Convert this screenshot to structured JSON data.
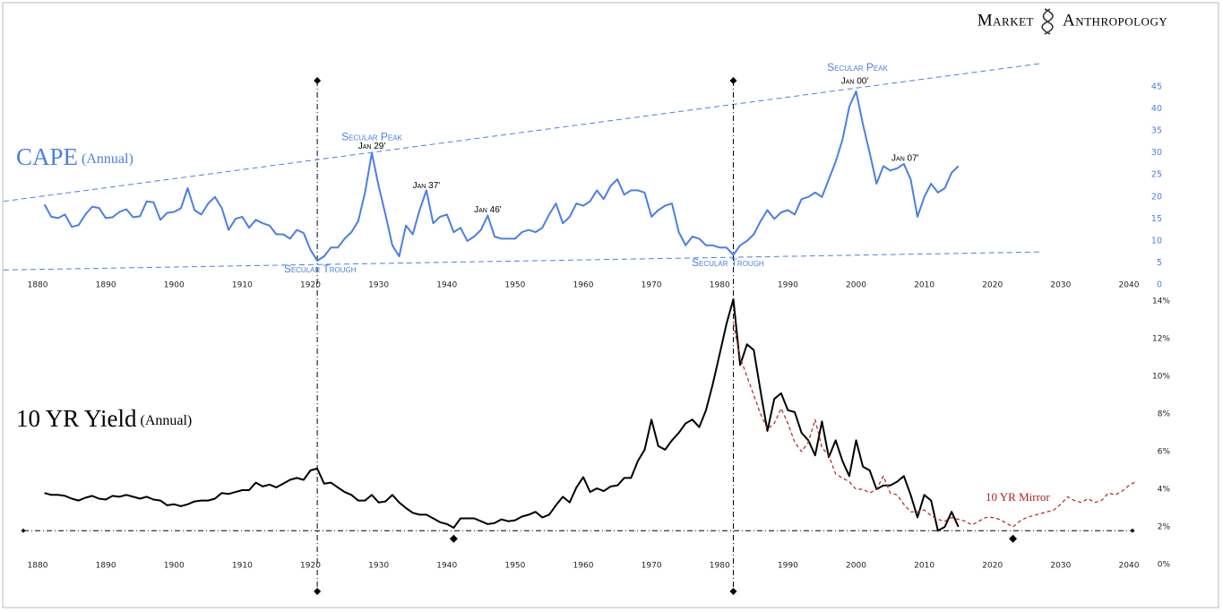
{
  "brand": {
    "words": [
      "Market",
      "Anthropology"
    ]
  },
  "chart_data": [
    {
      "type": "line",
      "title": "CAPE",
      "subtitle": "(Annual)",
      "series": [
        {
          "color": "#4a7fe6",
          "x": [
            1881,
            1882,
            1883,
            1884,
            1885,
            1886,
            1887,
            1888,
            1889,
            1890,
            1891,
            1892,
            1893,
            1894,
            1895,
            1896,
            1897,
            1898,
            1899,
            1900,
            1901,
            1902,
            1903,
            1904,
            1905,
            1906,
            1907,
            1908,
            1909,
            1910,
            1911,
            1912,
            1913,
            1914,
            1915,
            1916,
            1917,
            1918,
            1919,
            1920,
            1921,
            1922,
            1923,
            1924,
            1925,
            1926,
            1927,
            1928,
            1929,
            1930,
            1931,
            1932,
            1933,
            1934,
            1935,
            1936,
            1937,
            1938,
            1939,
            1940,
            1941,
            1942,
            1943,
            1944,
            1945,
            1946,
            1947,
            1948,
            1949,
            1950,
            1951,
            1952,
            1953,
            1954,
            1955,
            1956,
            1957,
            1958,
            1959,
            1960,
            1961,
            1962,
            1963,
            1964,
            1965,
            1966,
            1967,
            1968,
            1969,
            1970,
            1971,
            1972,
            1973,
            1974,
            1975,
            1976,
            1977,
            1978,
            1979,
            1980,
            1981,
            1982,
            1983,
            1984,
            1985,
            1986,
            1987,
            1988,
            1989,
            1990,
            1991,
            1992,
            1993,
            1994,
            1995,
            1996,
            1997,
            1998,
            1999,
            2000,
            2001,
            2002,
            2003,
            2004,
            2005,
            2006,
            2007,
            2008,
            2009,
            2010,
            2011,
            2012,
            2013,
            2014,
            2015
          ],
          "values": [
            18.3,
            15.5,
            15.2,
            16,
            13.2,
            13.6,
            16,
            17.8,
            17.5,
            15.2,
            15.4,
            16.6,
            17.2,
            15.4,
            15.6,
            19,
            18.8,
            14.8,
            16.4,
            16.6,
            17.4,
            22,
            17,
            16,
            18.5,
            20,
            17.5,
            12.5,
            15,
            15.5,
            13,
            14.8,
            14,
            13.5,
            11.5,
            11.5,
            10.5,
            12.5,
            11.8,
            8,
            5.5,
            6.5,
            8.5,
            8.5,
            10.5,
            12,
            14.5,
            21,
            30,
            22.5,
            16,
            9,
            6.5,
            13.5,
            11.5,
            17,
            21.5,
            14,
            15.5,
            16,
            12,
            13,
            10,
            11,
            12.5,
            15.8,
            11,
            10.5,
            10.5,
            10.5,
            12,
            12.5,
            12,
            13,
            16,
            18.5,
            14,
            15.5,
            18.5,
            18,
            19,
            21.5,
            19.5,
            22.5,
            24,
            20.5,
            21.5,
            21.5,
            21,
            15.5,
            17,
            18,
            18.5,
            12,
            9,
            11,
            10.5,
            9,
            9,
            8.5,
            8.5,
            6.8,
            9,
            10,
            11.5,
            14.5,
            17,
            15,
            16.5,
            17,
            16,
            19.5,
            20,
            21,
            20,
            24,
            28,
            33,
            40.5,
            44,
            36.5,
            30,
            23,
            27,
            26,
            26.5,
            27.5,
            24,
            15.5,
            20,
            23,
            21,
            22,
            25.5,
            27
          ]
        }
      ],
      "xlim": [
        1880,
        2040
      ],
      "xticks": [
        1880,
        1890,
        1900,
        1910,
        1920,
        1930,
        1940,
        1950,
        1960,
        1970,
        1980,
        1990,
        2000,
        2010,
        2020,
        2030,
        2040
      ],
      "ylim": [
        0,
        45
      ],
      "yticks": [
        0,
        5,
        10,
        15,
        20,
        25,
        30,
        35,
        40,
        45
      ],
      "trendlines": [
        {
          "x": [
            1875,
            2027
          ],
          "values": [
            19,
            50.3
          ]
        },
        {
          "x": [
            1875,
            2027
          ],
          "values": [
            3.4,
            7.5
          ]
        }
      ],
      "vlines": [
        1921,
        1982
      ],
      "annotations": [
        {
          "text": "Secular Peak",
          "x": 1929,
          "y": 33.5
        },
        {
          "text": "Jan 29'",
          "x": 1929,
          "y": 31.5
        },
        {
          "text": "Jan 37'",
          "x": 1937,
          "y": 22.5
        },
        {
          "text": "Jan 46'",
          "x": 1946,
          "y": 17
        },
        {
          "text": "Secular Trough",
          "x": 1921.4,
          "y": 3.5
        },
        {
          "text": "Secular Trough",
          "x": 1981.2,
          "y": 4.9
        },
        {
          "text": "Secular Peak",
          "x": 2000.2,
          "y": 49.3
        },
        {
          "text": "Jan 00'",
          "x": 1999.8,
          "y": 46.2
        },
        {
          "text": "Jan 07'",
          "x": 2007.2,
          "y": 28.7
        }
      ]
    },
    {
      "type": "line",
      "title": "10 YR Yield",
      "subtitle": "(Annual)",
      "series": [
        {
          "color": "#000000",
          "dash": false,
          "x": [
            1881,
            1882,
            1883,
            1884,
            1885,
            1886,
            1887,
            1888,
            1889,
            1890,
            1891,
            1892,
            1893,
            1894,
            1895,
            1896,
            1897,
            1898,
            1899,
            1900,
            1901,
            1902,
            1903,
            1904,
            1905,
            1906,
            1907,
            1908,
            1909,
            1910,
            1911,
            1912,
            1913,
            1914,
            1915,
            1916,
            1917,
            1918,
            1919,
            1920,
            1921,
            1922,
            1923,
            1924,
            1925,
            1926,
            1927,
            1928,
            1929,
            1930,
            1931,
            1932,
            1933,
            1934,
            1935,
            1936,
            1937,
            1938,
            1939,
            1940,
            1941,
            1942,
            1943,
            1944,
            1945,
            1946,
            1947,
            1948,
            1949,
            1950,
            1951,
            1952,
            1953,
            1954,
            1955,
            1956,
            1957,
            1958,
            1959,
            1960,
            1961,
            1962,
            1963,
            1964,
            1965,
            1966,
            1967,
            1968,
            1969,
            1970,
            1971,
            1972,
            1973,
            1974,
            1975,
            1976,
            1977,
            1978,
            1979,
            1980,
            1981,
            1982,
            1983,
            1984,
            1985,
            1986,
            1987,
            1988,
            1989,
            1990,
            1991,
            1992,
            1993,
            1994,
            1995,
            1996,
            1997,
            1998,
            1999,
            2000,
            2001,
            2002,
            2003,
            2004,
            2005,
            2006,
            2007,
            2008,
            2009,
            2010,
            2011,
            2012,
            2013,
            2014,
            2015
          ],
          "values": [
            3.8,
            3.7,
            3.7,
            3.65,
            3.5,
            3.4,
            3.55,
            3.65,
            3.5,
            3.45,
            3.65,
            3.6,
            3.7,
            3.6,
            3.5,
            3.6,
            3.45,
            3.4,
            3.15,
            3.2,
            3.1,
            3.2,
            3.35,
            3.4,
            3.4,
            3.5,
            3.8,
            3.75,
            3.85,
            3.95,
            3.95,
            4.35,
            4.15,
            4.25,
            4.1,
            4.3,
            4.5,
            4.6,
            4.5,
            5,
            5.1,
            4.3,
            4.35,
            4.1,
            3.85,
            3.7,
            3.4,
            3.4,
            3.7,
            3.3,
            3.35,
            3.7,
            3.3,
            3,
            2.75,
            2.65,
            2.65,
            2.45,
            2.25,
            2.15,
            1.95,
            2.45,
            2.45,
            2.45,
            2.3,
            2.15,
            2.2,
            2.4,
            2.3,
            2.35,
            2.55,
            2.65,
            2.8,
            2.5,
            2.65,
            3.15,
            3.6,
            3.3,
            4.1,
            4.65,
            3.85,
            4.05,
            3.9,
            4.15,
            4.2,
            4.6,
            4.6,
            5.5,
            6.1,
            7.7,
            6.3,
            6.1,
            6.6,
            7,
            7.5,
            7.7,
            7.3,
            8.2,
            9.6,
            11.2,
            12.8,
            14.1,
            10.6,
            11.7,
            11.4,
            9.2,
            7.1,
            8.8,
            9.1,
            8.2,
            8.1,
            7,
            6.6,
            5.8,
            7.6,
            5.7,
            6.6,
            5.5,
            4.7,
            6.6,
            5.2,
            5,
            4,
            4.2,
            4.2,
            4.4,
            4.7,
            3.7,
            2.5,
            3.7,
            3.4,
            1.8,
            2,
            2.8,
            2
          ]
        },
        {
          "name": "10 YR Mirror",
          "color": "#b22222",
          "dash": true,
          "x": [
            1982,
            1983,
            1984,
            1985,
            1986,
            1987,
            1988,
            1989,
            1990,
            1991,
            1992,
            1993,
            1994,
            1995,
            1996,
            1997,
            1998,
            1999,
            2000,
            2001,
            2002,
            2003,
            2004,
            2005,
            2006,
            2007,
            2008,
            2009,
            2010,
            2011,
            2012,
            2013,
            2014,
            2015,
            2016,
            2017,
            2018,
            2019,
            2020,
            2021,
            2022,
            2023,
            2024,
            2025,
            2026,
            2027,
            2028,
            2029,
            2030,
            2031,
            2032,
            2033,
            2034,
            2035,
            2036,
            2037,
            2038,
            2039,
            2040,
            2041
          ],
          "values": [
            12.8,
            11,
            10,
            9,
            8,
            7.2,
            7.5,
            8.3,
            7.5,
            6.5,
            6,
            6.5,
            7.7,
            6.2,
            5.8,
            4.8,
            4.6,
            4.4,
            4,
            4,
            3.8,
            4,
            4.7,
            3.8,
            3.7,
            3.2,
            2.8,
            2.8,
            2.9,
            2.6,
            2.4,
            2.3,
            2.5,
            2.4,
            2.3,
            2.1,
            2.3,
            2.5,
            2.5,
            2.4,
            2.2,
            2,
            2.3,
            2.5,
            2.6,
            2.7,
            2.8,
            2.9,
            3.2,
            3.6,
            3.4,
            3.3,
            3.5,
            3.3,
            3.4,
            3.8,
            3.7,
            3.9,
            4.2,
            4.4
          ]
        }
      ],
      "xlim": [
        1880,
        2040
      ],
      "xticks": [
        1880,
        1890,
        1900,
        1910,
        1920,
        1930,
        1940,
        1950,
        1960,
        1970,
        1980,
        1990,
        2000,
        2010,
        2020,
        2030,
        2040
      ],
      "ylim": [
        0,
        14
      ],
      "yticks": [
        {
          "value": 0,
          "label": "0%"
        },
        {
          "value": 2,
          "label": "2%"
        },
        {
          "value": 4,
          "label": "4%"
        },
        {
          "value": 6,
          "label": "6%"
        },
        {
          "value": 8,
          "label": "8%"
        },
        {
          "value": 10,
          "label": "10%"
        },
        {
          "value": 12,
          "label": "12%"
        },
        {
          "value": 14,
          "label": "14%"
        }
      ],
      "hline": 1.8,
      "markers_x": [
        1941,
        2023
      ]
    }
  ]
}
